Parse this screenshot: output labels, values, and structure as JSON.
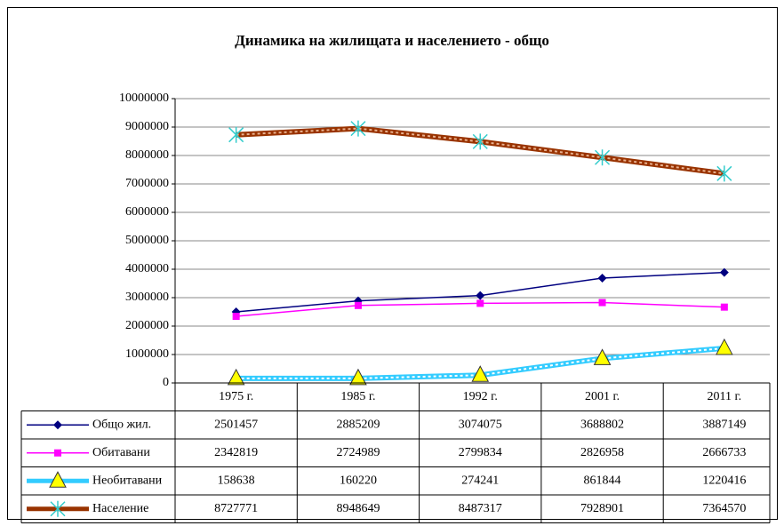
{
  "chart_data": {
    "type": "line",
    "title": "Динамика на жилищата и населението - общо",
    "categories": [
      "1975 г.",
      "1985 г.",
      "1992 г.",
      "2001 г.",
      "2011 г."
    ],
    "series": [
      {
        "name": "Общо жил.",
        "color": "#000080",
        "marker": "diamond",
        "marker_color": "#000080",
        "values": [
          2501457,
          2885209,
          3074075,
          3688802,
          3887149
        ]
      },
      {
        "name": "Обитавани",
        "color": "#ff00ff",
        "marker": "square",
        "marker_color": "#ff00ff",
        "values": [
          2342819,
          2724989,
          2799834,
          2826958,
          2666733
        ]
      },
      {
        "name": "Необитавани",
        "color": "#33ccff",
        "marker": "triangle",
        "marker_color": "#ffff00",
        "values": [
          158638,
          160220,
          274241,
          861844,
          1220416
        ]
      },
      {
        "name": "Население",
        "color": "#993300",
        "marker": "star",
        "marker_color": "#33cccc",
        "values": [
          8727771,
          8948649,
          8487317,
          7928901,
          7364570
        ]
      }
    ],
    "ylim": [
      0,
      10000000
    ],
    "yticks": [
      0,
      1000000,
      2000000,
      3000000,
      4000000,
      5000000,
      6000000,
      7000000,
      8000000,
      9000000,
      10000000
    ],
    "grid": true,
    "data_table": true
  }
}
